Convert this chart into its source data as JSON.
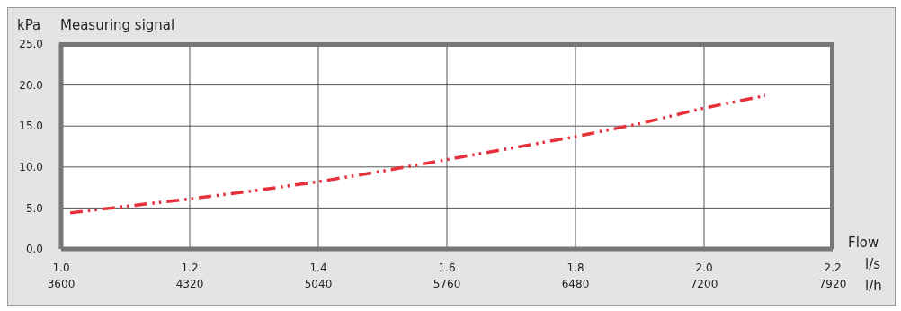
{
  "chart_data": {
    "type": "line",
    "title": "Measuring signal",
    "ylabel": "kPa",
    "xlabel": "l/s",
    "x2label": "l/h",
    "annotations": [
      "Flow"
    ],
    "x": [
      1.014,
      1.1,
      1.2,
      1.3,
      1.4,
      1.5,
      1.6,
      1.7,
      1.8,
      1.9,
      2.0,
      2.095
    ],
    "series": [
      {
        "color": "#e8303a",
        "values": [
          4.4,
          5.2,
          6.1,
          7.1,
          8.2,
          9.5,
          10.9,
          12.3,
          13.7,
          15.3,
          17.2,
          18.7
        ]
      }
    ],
    "xlim": [
      1.0,
      2.2
    ],
    "xticks": [
      {
        "value": 1.0,
        "label": "1.0"
      },
      1.2,
      1.4,
      1.6,
      1.8,
      {
        "value": 2.0,
        "label": "2.0"
      },
      2.2
    ],
    "x2lim": [
      3600,
      7920
    ],
    "x2ticks": [
      3600,
      4320,
      5040,
      5760,
      6480,
      7200,
      7920
    ],
    "ylim": [
      0,
      25
    ],
    "yticks": [
      {
        "value": 0,
        "label": "0.0"
      },
      {
        "value": 5,
        "label": "5.0"
      },
      {
        "value": 10,
        "label": "10.0"
      },
      {
        "value": 15,
        "label": "15.0"
      },
      {
        "value": 20,
        "label": "20.0"
      },
      {
        "value": 25,
        "label": "25.0"
      }
    ],
    "grid": true,
    "marker": "none",
    "line_style": "dashed"
  }
}
